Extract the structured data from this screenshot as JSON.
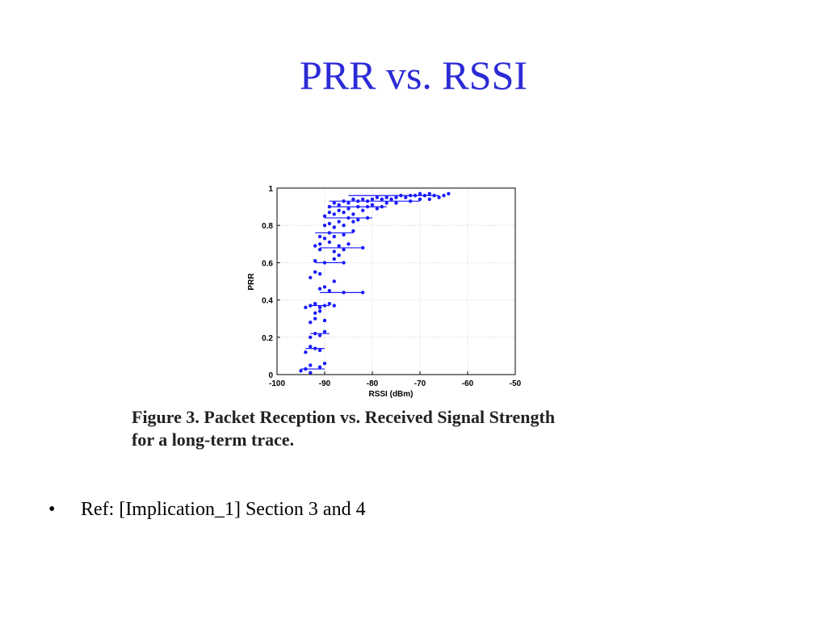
{
  "slide": {
    "title": "PRR vs. RSSI",
    "caption_line1": "Figure 3.  Packet Reception vs.  Received Signal Strength",
    "caption_line2": "for a long-term trace.",
    "bullets": [
      {
        "marker": "•",
        "text": "Ref: [Implication_1] Section 3 and 4"
      }
    ]
  },
  "colors": {
    "title": "#2b2bd6",
    "series": "#1a1aff",
    "grid": "#c8c8c8"
  },
  "chart_data": {
    "type": "scatter",
    "xlabel": "RSSI (dBm)",
    "ylabel": "PRR",
    "xlim": [
      -100,
      -50
    ],
    "ylim": [
      0,
      1
    ],
    "xticks": [
      -100,
      -90,
      -80,
      -70,
      -60,
      -50
    ],
    "xtick_labels": [
      "-100",
      "-90",
      "-80",
      "-70",
      "-60",
      "-50"
    ],
    "yticks": [
      0,
      0.2,
      0.4,
      0.6,
      0.8,
      1
    ],
    "ytick_labels": [
      "0",
      "0.2",
      "0.4",
      "0.6",
      "0.8",
      "1"
    ],
    "grid": true,
    "series": [
      {
        "points": [
          [
            -95,
            0.02
          ],
          [
            -94,
            0.03
          ],
          [
            -93,
            0.05
          ],
          [
            -91,
            0.04
          ],
          [
            -90,
            0.06
          ],
          [
            -93,
            0.01
          ],
          [
            -94,
            0.12
          ],
          [
            -93,
            0.15
          ],
          [
            -92,
            0.14
          ],
          [
            -91,
            0.13
          ],
          [
            -93,
            0.2
          ],
          [
            -92,
            0.22
          ],
          [
            -91,
            0.21
          ],
          [
            -90,
            0.23
          ],
          [
            -93,
            0.28
          ],
          [
            -92,
            0.3
          ],
          [
            -90,
            0.29
          ],
          [
            -92,
            0.33
          ],
          [
            -91,
            0.34
          ],
          [
            -94,
            0.36
          ],
          [
            -93,
            0.37
          ],
          [
            -92,
            0.38
          ],
          [
            -91,
            0.36
          ],
          [
            -90,
            0.37
          ],
          [
            -89,
            0.38
          ],
          [
            -88,
            0.37
          ],
          [
            -91,
            0.46
          ],
          [
            -90,
            0.47
          ],
          [
            -89,
            0.45
          ],
          [
            -86,
            0.44
          ],
          [
            -82,
            0.44
          ],
          [
            -93,
            0.52
          ],
          [
            -92,
            0.55
          ],
          [
            -91,
            0.54
          ],
          [
            -88,
            0.5
          ],
          [
            -92,
            0.61
          ],
          [
            -90,
            0.6
          ],
          [
            -88,
            0.62
          ],
          [
            -86,
            0.6
          ],
          [
            -87,
            0.64
          ],
          [
            -91,
            0.67
          ],
          [
            -88,
            0.66
          ],
          [
            -86,
            0.67
          ],
          [
            -82,
            0.68
          ],
          [
            -92,
            0.69
          ],
          [
            -91,
            0.7
          ],
          [
            -89,
            0.71
          ],
          [
            -87,
            0.69
          ],
          [
            -85,
            0.7
          ],
          [
            -91,
            0.74
          ],
          [
            -90,
            0.73
          ],
          [
            -89,
            0.76
          ],
          [
            -88,
            0.74
          ],
          [
            -86,
            0.75
          ],
          [
            -84,
            0.77
          ],
          [
            -90,
            0.8
          ],
          [
            -89,
            0.81
          ],
          [
            -88,
            0.79
          ],
          [
            -87,
            0.82
          ],
          [
            -86,
            0.8
          ],
          [
            -85,
            0.84
          ],
          [
            -84,
            0.82
          ],
          [
            -83,
            0.83
          ],
          [
            -81,
            0.84
          ],
          [
            -90,
            0.85
          ],
          [
            -89,
            0.87
          ],
          [
            -88,
            0.86
          ],
          [
            -87,
            0.88
          ],
          [
            -86,
            0.87
          ],
          [
            -85,
            0.89
          ],
          [
            -84,
            0.86
          ],
          [
            -83,
            0.9
          ],
          [
            -82,
            0.88
          ],
          [
            -81,
            0.9
          ],
          [
            -80,
            0.91
          ],
          [
            -79,
            0.89
          ],
          [
            -78,
            0.9
          ],
          [
            -77,
            0.92
          ],
          [
            -89,
            0.9
          ],
          [
            -88,
            0.92
          ],
          [
            -87,
            0.91
          ],
          [
            -86,
            0.93
          ],
          [
            -85,
            0.92
          ],
          [
            -84,
            0.94
          ],
          [
            -83,
            0.93
          ],
          [
            -82,
            0.94
          ],
          [
            -81,
            0.93
          ],
          [
            -80,
            0.94
          ],
          [
            -79,
            0.95
          ],
          [
            -78,
            0.94
          ],
          [
            -77,
            0.95
          ],
          [
            -76,
            0.94
          ],
          [
            -75,
            0.95
          ],
          [
            -74,
            0.96
          ],
          [
            -73,
            0.95
          ],
          [
            -72,
            0.96
          ],
          [
            -71,
            0.96
          ],
          [
            -70,
            0.97
          ],
          [
            -69,
            0.96
          ],
          [
            -68,
            0.97
          ],
          [
            -67,
            0.96
          ],
          [
            -66,
            0.95
          ],
          [
            -65,
            0.96
          ],
          [
            -64,
            0.97
          ],
          [
            -72,
            0.93
          ],
          [
            -75,
            0.92
          ],
          [
            -70,
            0.94
          ],
          [
            -68,
            0.94
          ]
        ],
        "ranges": [
          [
            -95,
            -90,
            0.03
          ],
          [
            -94,
            -90,
            0.14
          ],
          [
            -93,
            -89,
            0.22
          ],
          [
            -93,
            -89,
            0.37
          ],
          [
            -91,
            -82,
            0.44
          ],
          [
            -92,
            -86,
            0.6
          ],
          [
            -91,
            -82,
            0.68
          ],
          [
            -92,
            -84,
            0.76
          ],
          [
            -90,
            -80,
            0.84
          ],
          [
            -89,
            -77,
            0.9
          ],
          [
            -89,
            -70,
            0.93
          ],
          [
            -85,
            -66,
            0.96
          ]
        ]
      }
    ]
  }
}
